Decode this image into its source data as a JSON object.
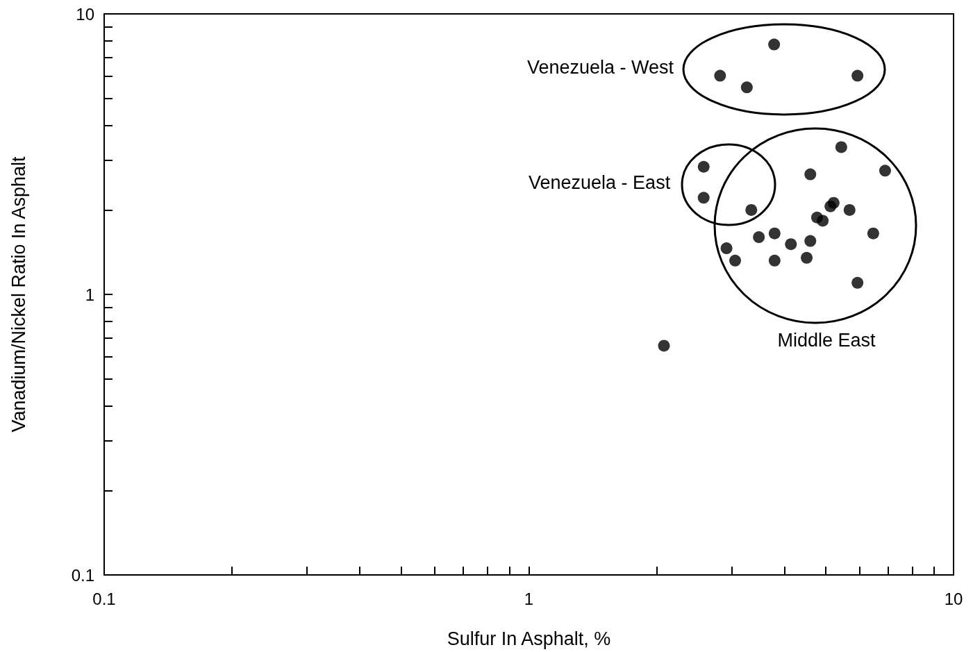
{
  "chart_data": {
    "type": "scatter",
    "xlabel": "Sulfur In Asphalt, %",
    "ylabel": "Vanadium/Nickel Ratio In Asphalt",
    "annotations": [
      "Venezuela - West",
      "Venezuela - East",
      "Middle East"
    ],
    "x": [
      2.82,
      3.26,
      3.78,
      5.94,
      2.58,
      2.58,
      3.34,
      2.92,
      3.06,
      3.48,
      3.79,
      3.79,
      4.14,
      4.51,
      4.6,
      4.6,
      4.77,
      4.92,
      5.13,
      5.22,
      5.44,
      5.69,
      5.94,
      6.47,
      6.9,
      2.08
    ],
    "values": [
      6.02,
      5.47,
      7.78,
      6.02,
      2.85,
      2.21,
      2.0,
      1.46,
      1.32,
      1.6,
      1.65,
      1.32,
      1.51,
      1.35,
      1.55,
      2.68,
      1.88,
      1.83,
      2.06,
      2.12,
      3.35,
      2.0,
      1.1,
      1.65,
      2.76,
      0.656
    ],
    "color": "#000000",
    "marker": "circle",
    "log": "xy",
    "grid": false,
    "xlim": [
      0.1,
      10
    ],
    "ylim": [
      0.1,
      10
    ],
    "xticks": [
      0.1,
      {
        "value": 0.2,
        "label": null
      },
      {
        "value": 0.3,
        "label": null
      },
      {
        "value": 0.4,
        "label": null
      },
      {
        "value": 0.5,
        "label": null
      },
      {
        "value": 0.6,
        "label": null
      },
      {
        "value": 0.7,
        "label": null
      },
      {
        "value": 0.8,
        "label": null
      },
      {
        "value": 0.9,
        "label": null
      },
      1,
      {
        "value": 2,
        "label": null
      },
      {
        "value": 3,
        "label": null
      },
      {
        "value": 4,
        "label": null
      },
      {
        "value": 5,
        "label": null
      },
      {
        "value": 6,
        "label": null
      },
      {
        "value": 7,
        "label": null
      },
      {
        "value": 8,
        "label": null
      },
      {
        "value": 9,
        "label": null
      },
      10
    ],
    "yticks": [
      0.1,
      {
        "value": 0.2,
        "label": null
      },
      {
        "value": 0.3,
        "label": null
      },
      {
        "value": 0.4,
        "label": null
      },
      {
        "value": 0.5,
        "label": null
      },
      {
        "value": 0.6,
        "label": null
      },
      {
        "value": 0.7,
        "label": null
      },
      {
        "value": 0.8,
        "label": null
      },
      {
        "value": 0.9,
        "label": null
      },
      1,
      {
        "value": 2,
        "label": null
      },
      {
        "value": 3,
        "label": null
      },
      {
        "value": 4,
        "label": null
      },
      {
        "value": 5,
        "label": null
      },
      {
        "value": 6,
        "label": null
      },
      {
        "value": 7,
        "label": null
      },
      {
        "value": 8,
        "label": null
      },
      {
        "value": 9,
        "label": null
      },
      10
    ]
  }
}
